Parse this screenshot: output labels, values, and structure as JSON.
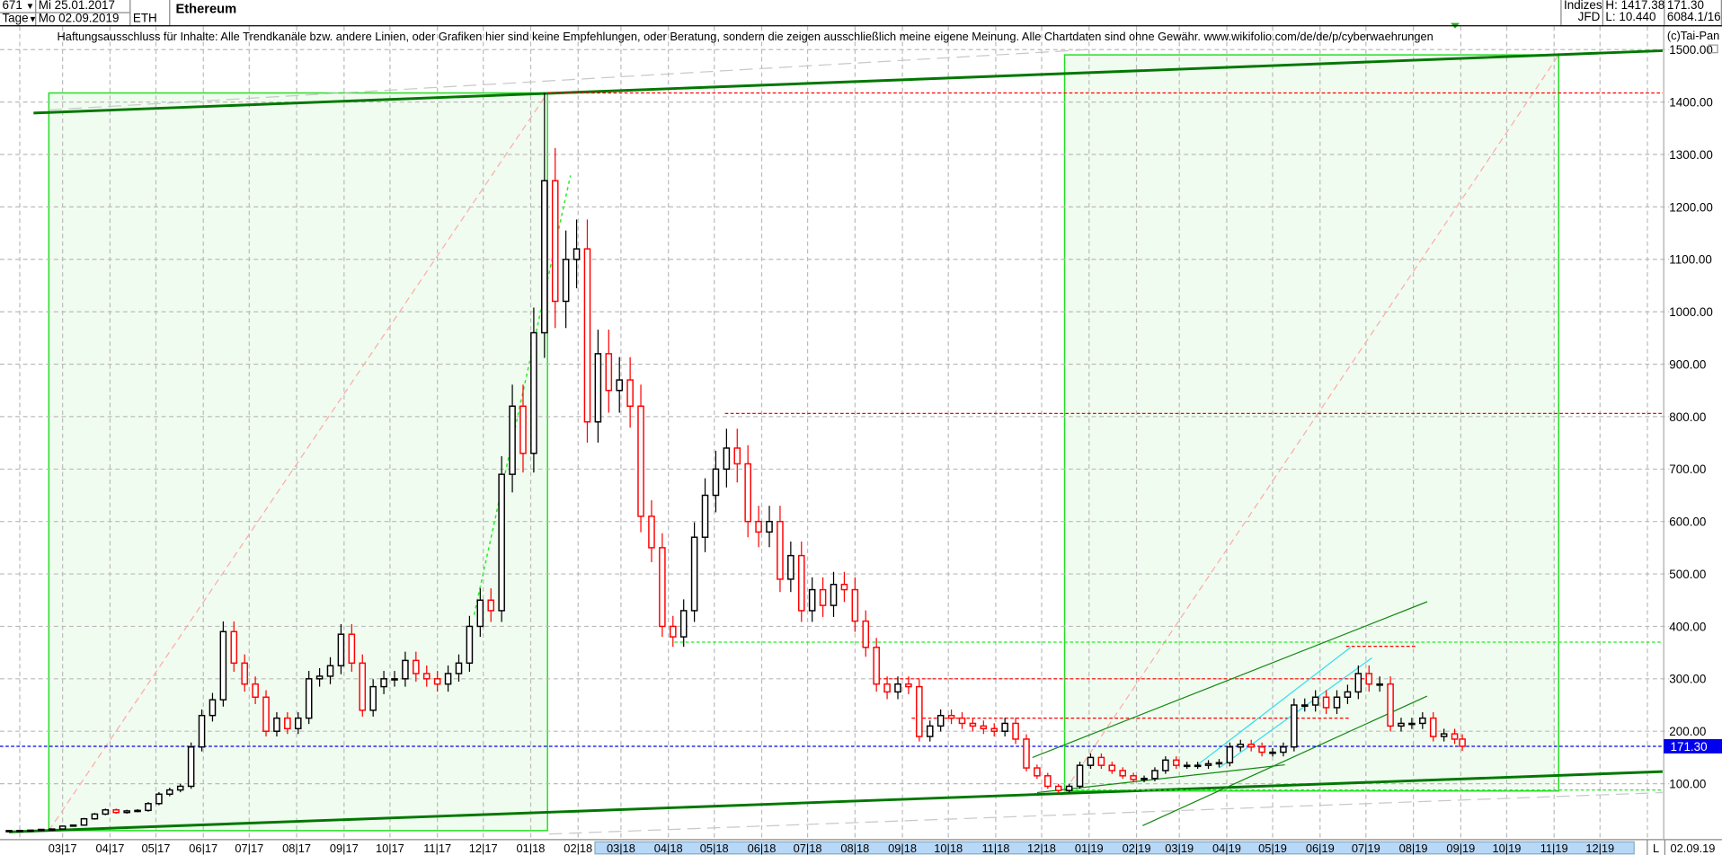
{
  "header": {
    "bars_count": "671",
    "period": "Tage",
    "start_date": "Mi 25.01.2017",
    "end_date": "Mo 02.09.2019",
    "symbol": "ETH",
    "instrument": "Ethereum",
    "category": "Indizes",
    "source": "JFD",
    "high": "H: 1417.38",
    "low": "L: 10.440",
    "last": "171.30",
    "info": "6084.1/16"
  },
  "disclaimer": "Haftungsausschluss für Inhalte: Alle Trendkanäle bzw. andere Linien, oder Grafiken hier sind keine Empfehlungen, oder Beratung, sondern die zeigen ausschließlich meine eigene Meinung. Alle Chartdaten sind ohne Gewähr.  www.wikifolio.com/de/de/p/cyberwaehrungen",
  "copyright": "(c)Tai-Pan",
  "footer": {
    "mode": "L",
    "date": "02.09.19"
  },
  "colors": {
    "up": "#000000",
    "down": "#ff0000",
    "box_fill": "#f0fcef",
    "box_border": "#22dd22",
    "channel": "#007700",
    "last_price": "#0000ee",
    "axis_highlight": "#b8d8f8"
  },
  "chart_data": {
    "type": "candlestick",
    "title": "Ethereum",
    "resolution_note": "weekly closes approximated from daily chart",
    "ylim": [
      0,
      1560
    ],
    "yticks": [
      "100.00",
      "200.00",
      "300.00",
      "400.00",
      "500.00",
      "600.00",
      "700.00",
      "800.00",
      "900.00",
      "1000.00",
      "1100.00",
      "1200.00",
      "1300.00",
      "1400.00",
      "1500.00"
    ],
    "xticks": [
      "03|17",
      "04|17",
      "05|17",
      "06|17",
      "07|17",
      "08|17",
      "09|17",
      "10|17",
      "11|17",
      "12|17",
      "01|18",
      "02|18",
      "03|18",
      "04|18",
      "05|18",
      "06|18",
      "07|18",
      "08|18",
      "09|18",
      "10|18",
      "11|18",
      "12|18",
      "01|19",
      "02|19",
      "03|19",
      "04|19",
      "05|19",
      "06|19",
      "07|19",
      "08|19",
      "09|19",
      "10|19",
      "11|19",
      "12|19"
    ],
    "grid": true,
    "last_price": 171.3,
    "last_price_label": "171.30",
    "series": [
      {
        "d": "2017-01-25",
        "c": 10.5
      },
      {
        "d": "2017-02-01",
        "c": 10.7
      },
      {
        "d": "2017-02-08",
        "c": 11.3
      },
      {
        "d": "2017-02-15",
        "c": 12.8
      },
      {
        "d": "2017-02-22",
        "c": 13.5
      },
      {
        "d": "2017-03-01",
        "c": 19
      },
      {
        "d": "2017-03-08",
        "c": 21
      },
      {
        "d": "2017-03-15",
        "c": 33
      },
      {
        "d": "2017-03-22",
        "c": 42
      },
      {
        "d": "2017-03-29",
        "c": 50
      },
      {
        "d": "2017-04-05",
        "c": 45
      },
      {
        "d": "2017-04-12",
        "c": 48
      },
      {
        "d": "2017-04-19",
        "c": 49
      },
      {
        "d": "2017-04-26",
        "c": 62
      },
      {
        "d": "2017-05-03",
        "c": 80
      },
      {
        "d": "2017-05-10",
        "c": 88
      },
      {
        "d": "2017-05-17",
        "c": 95
      },
      {
        "d": "2017-05-24",
        "c": 170
      },
      {
        "d": "2017-05-31",
        "c": 230
      },
      {
        "d": "2017-06-07",
        "c": 260
      },
      {
        "d": "2017-06-14",
        "c": 390
      },
      {
        "d": "2017-06-21",
        "c": 330
      },
      {
        "d": "2017-06-28",
        "c": 290
      },
      {
        "d": "2017-07-05",
        "c": 265
      },
      {
        "d": "2017-07-12",
        "c": 200
      },
      {
        "d": "2017-07-19",
        "c": 225
      },
      {
        "d": "2017-07-26",
        "c": 205
      },
      {
        "d": "2017-08-02",
        "c": 225
      },
      {
        "d": "2017-08-09",
        "c": 300
      },
      {
        "d": "2017-08-16",
        "c": 305
      },
      {
        "d": "2017-08-23",
        "c": 325
      },
      {
        "d": "2017-08-30",
        "c": 385
      },
      {
        "d": "2017-09-06",
        "c": 330
      },
      {
        "d": "2017-09-13",
        "c": 240
      },
      {
        "d": "2017-09-20",
        "c": 285
      },
      {
        "d": "2017-09-27",
        "c": 300
      },
      {
        "d": "2017-10-04",
        "c": 300
      },
      {
        "d": "2017-10-11",
        "c": 335
      },
      {
        "d": "2017-10-18",
        "c": 310
      },
      {
        "d": "2017-10-25",
        "c": 300
      },
      {
        "d": "2017-11-01",
        "c": 290
      },
      {
        "d": "2017-11-08",
        "c": 310
      },
      {
        "d": "2017-11-15",
        "c": 330
      },
      {
        "d": "2017-11-22",
        "c": 400
      },
      {
        "d": "2017-11-29",
        "c": 450
      },
      {
        "d": "2017-12-06",
        "c": 430
      },
      {
        "d": "2017-12-13",
        "c": 690
      },
      {
        "d": "2017-12-20",
        "c": 820
      },
      {
        "d": "2017-12-27",
        "c": 730
      },
      {
        "d": "2018-01-03",
        "c": 960
      },
      {
        "d": "2018-01-10",
        "c": 1250,
        "h": 1417.38
      },
      {
        "d": "2018-01-17",
        "c": 1020
      },
      {
        "d": "2018-01-24",
        "c": 1100
      },
      {
        "d": "2018-01-31",
        "c": 1120
      },
      {
        "d": "2018-02-07",
        "c": 790
      },
      {
        "d": "2018-02-14",
        "c": 920
      },
      {
        "d": "2018-02-21",
        "c": 850
      },
      {
        "d": "2018-02-28",
        "c": 870
      },
      {
        "d": "2018-03-07",
        "c": 820
      },
      {
        "d": "2018-03-14",
        "c": 610
      },
      {
        "d": "2018-03-21",
        "c": 550
      },
      {
        "d": "2018-03-28",
        "c": 400
      },
      {
        "d": "2018-04-04",
        "c": 380
      },
      {
        "d": "2018-04-11",
        "c": 430
      },
      {
        "d": "2018-04-18",
        "c": 570
      },
      {
        "d": "2018-04-25",
        "c": 650
      },
      {
        "d": "2018-05-02",
        "c": 700
      },
      {
        "d": "2018-05-09",
        "c": 740
      },
      {
        "d": "2018-05-16",
        "c": 710
      },
      {
        "d": "2018-05-23",
        "c": 600
      },
      {
        "d": "2018-05-30",
        "c": 580
      },
      {
        "d": "2018-06-06",
        "c": 600
      },
      {
        "d": "2018-06-13",
        "c": 490
      },
      {
        "d": "2018-06-20",
        "c": 535
      },
      {
        "d": "2018-06-27",
        "c": 430
      },
      {
        "d": "2018-07-04",
        "c": 470
      },
      {
        "d": "2018-07-11",
        "c": 440
      },
      {
        "d": "2018-07-18",
        "c": 480
      },
      {
        "d": "2018-07-25",
        "c": 470
      },
      {
        "d": "2018-08-01",
        "c": 410
      },
      {
        "d": "2018-08-08",
        "c": 360
      },
      {
        "d": "2018-08-15",
        "c": 290
      },
      {
        "d": "2018-08-22",
        "c": 275
      },
      {
        "d": "2018-08-29",
        "c": 290
      },
      {
        "d": "2018-09-05",
        "c": 285
      },
      {
        "d": "2018-09-12",
        "c": 190
      },
      {
        "d": "2018-09-19",
        "c": 210
      },
      {
        "d": "2018-09-26",
        "c": 230
      },
      {
        "d": "2018-10-03",
        "c": 225
      },
      {
        "d": "2018-10-10",
        "c": 215
      },
      {
        "d": "2018-10-17",
        "c": 210
      },
      {
        "d": "2018-10-24",
        "c": 205
      },
      {
        "d": "2018-10-31",
        "c": 200
      },
      {
        "d": "2018-11-07",
        "c": 215
      },
      {
        "d": "2018-11-14",
        "c": 185
      },
      {
        "d": "2018-11-21",
        "c": 130
      },
      {
        "d": "2018-11-28",
        "c": 115
      },
      {
        "d": "2018-12-05",
        "c": 95
      },
      {
        "d": "2018-12-12",
        "c": 87
      },
      {
        "d": "2018-12-19",
        "c": 95
      },
      {
        "d": "2018-12-26",
        "c": 135
      },
      {
        "d": "2019-01-02",
        "c": 150
      },
      {
        "d": "2019-01-09",
        "c": 135
      },
      {
        "d": "2019-01-16",
        "c": 125
      },
      {
        "d": "2019-01-23",
        "c": 115
      },
      {
        "d": "2019-01-30",
        "c": 108
      },
      {
        "d": "2019-02-06",
        "c": 110
      },
      {
        "d": "2019-02-13",
        "c": 125
      },
      {
        "d": "2019-02-20",
        "c": 145
      },
      {
        "d": "2019-02-27",
        "c": 135
      },
      {
        "d": "2019-03-06",
        "c": 135
      },
      {
        "d": "2019-03-13",
        "c": 135
      },
      {
        "d": "2019-03-20",
        "c": 138
      },
      {
        "d": "2019-03-27",
        "c": 140
      },
      {
        "d": "2019-04-03",
        "c": 170
      },
      {
        "d": "2019-04-10",
        "c": 175
      },
      {
        "d": "2019-04-17",
        "c": 170
      },
      {
        "d": "2019-04-24",
        "c": 160
      },
      {
        "d": "2019-05-01",
        "c": 160
      },
      {
        "d": "2019-05-08",
        "c": 170
      },
      {
        "d": "2019-05-15",
        "c": 250
      },
      {
        "d": "2019-05-22",
        "c": 250
      },
      {
        "d": "2019-05-29",
        "c": 265
      },
      {
        "d": "2019-06-05",
        "c": 245
      },
      {
        "d": "2019-06-12",
        "c": 265
      },
      {
        "d": "2019-06-19",
        "c": 275
      },
      {
        "d": "2019-06-26",
        "c": 310
      },
      {
        "d": "2019-07-03",
        "c": 290
      },
      {
        "d": "2019-07-10",
        "c": 290
      },
      {
        "d": "2019-07-17",
        "c": 210
      },
      {
        "d": "2019-07-24",
        "c": 215
      },
      {
        "d": "2019-07-31",
        "c": 215
      },
      {
        "d": "2019-08-07",
        "c": 225
      },
      {
        "d": "2019-08-14",
        "c": 190
      },
      {
        "d": "2019-08-21",
        "c": 195
      },
      {
        "d": "2019-08-28",
        "c": 185
      },
      {
        "d": "2019-09-02",
        "c": 171.3
      }
    ],
    "drawings": [
      {
        "kind": "box",
        "from": [
          "2017-02-20",
          10.44
        ],
        "to": [
          "2018-01-12",
          1417.38
        ]
      },
      {
        "kind": "box",
        "from": [
          "2018-12-16",
          86
        ],
        "to": [
          "2019-11-04",
          1490
        ]
      },
      {
        "kind": "diagonal",
        "from": [
          "2017-02-20",
          10.44
        ],
        "to": [
          "2018-01-12",
          1417.38
        ]
      },
      {
        "kind": "diagonal",
        "from": [
          "2018-12-16",
          86
        ],
        "to": [
          "2019-11-04",
          1490
        ]
      },
      {
        "kind": "channel",
        "from": [
          "2017-02-10",
          1379
        ],
        "to": [
          "2020-01-11",
          1498
        ]
      },
      {
        "kind": "channel",
        "from": [
          "2017-01-25",
          8
        ],
        "to": [
          "2020-01-11",
          123
        ]
      },
      {
        "kind": "gray",
        "from": [
          "2017-02-20",
          1385
        ],
        "to": [
          "2018-12-31",
          1500
        ]
      },
      {
        "kind": "gray",
        "from": [
          "2018-01-13",
          4
        ],
        "to": [
          "2020-01-11",
          83
        ]
      },
      {
        "kind": "red-level",
        "from": [
          "2018-01-12",
          1417.38
        ],
        "to": [
          "2020-01-11",
          1417.38
        ]
      },
      {
        "kind": "red-level",
        "from": [
          "2018-05-08",
          806
        ],
        "to": [
          "2020-01-11",
          806
        ]
      },
      {
        "kind": "green-level",
        "from": [
          "2018-04-05",
          370
        ],
        "to": [
          "2020-01-11",
          370
        ]
      },
      {
        "kind": "green-level",
        "from": [
          "2018-12-16",
          88
        ],
        "to": [
          "2020-01-11",
          88
        ]
      },
      {
        "kind": "red-level",
        "from": [
          "2018-08-16",
          300
        ],
        "to": [
          "2019-07-05",
          300
        ]
      },
      {
        "kind": "red-level",
        "from": [
          "2018-09-07",
          225
        ],
        "to": [
          "2019-06-21",
          225
        ]
      },
      {
        "kind": "red-level",
        "from": [
          "2019-06-18",
          362
        ],
        "to": [
          "2019-08-03",
          362
        ]
      },
      {
        "kind": "trend",
        "from": [
          "2018-11-25",
          150
        ],
        "to": [
          "2019-08-10",
          447
        ]
      },
      {
        "kind": "trend",
        "from": [
          "2019-02-05",
          20
        ],
        "to": [
          "2019-08-10",
          267
        ]
      },
      {
        "kind": "trend",
        "from": [
          "2018-11-28",
          83
        ],
        "to": [
          "2019-05-09",
          136
        ]
      },
      {
        "kind": "cyan",
        "from": [
          "2019-03-13",
          136
        ],
        "to": [
          "2019-06-21",
          360
        ]
      },
      {
        "kind": "cyan",
        "from": [
          "2019-03-27",
          130
        ],
        "to": [
          "2019-07-05",
          340
        ]
      },
      {
        "kind": "green-dotted",
        "from": [
          "2017-11-25",
          422
        ],
        "to": [
          "2018-01-27",
          1260
        ]
      }
    ]
  }
}
